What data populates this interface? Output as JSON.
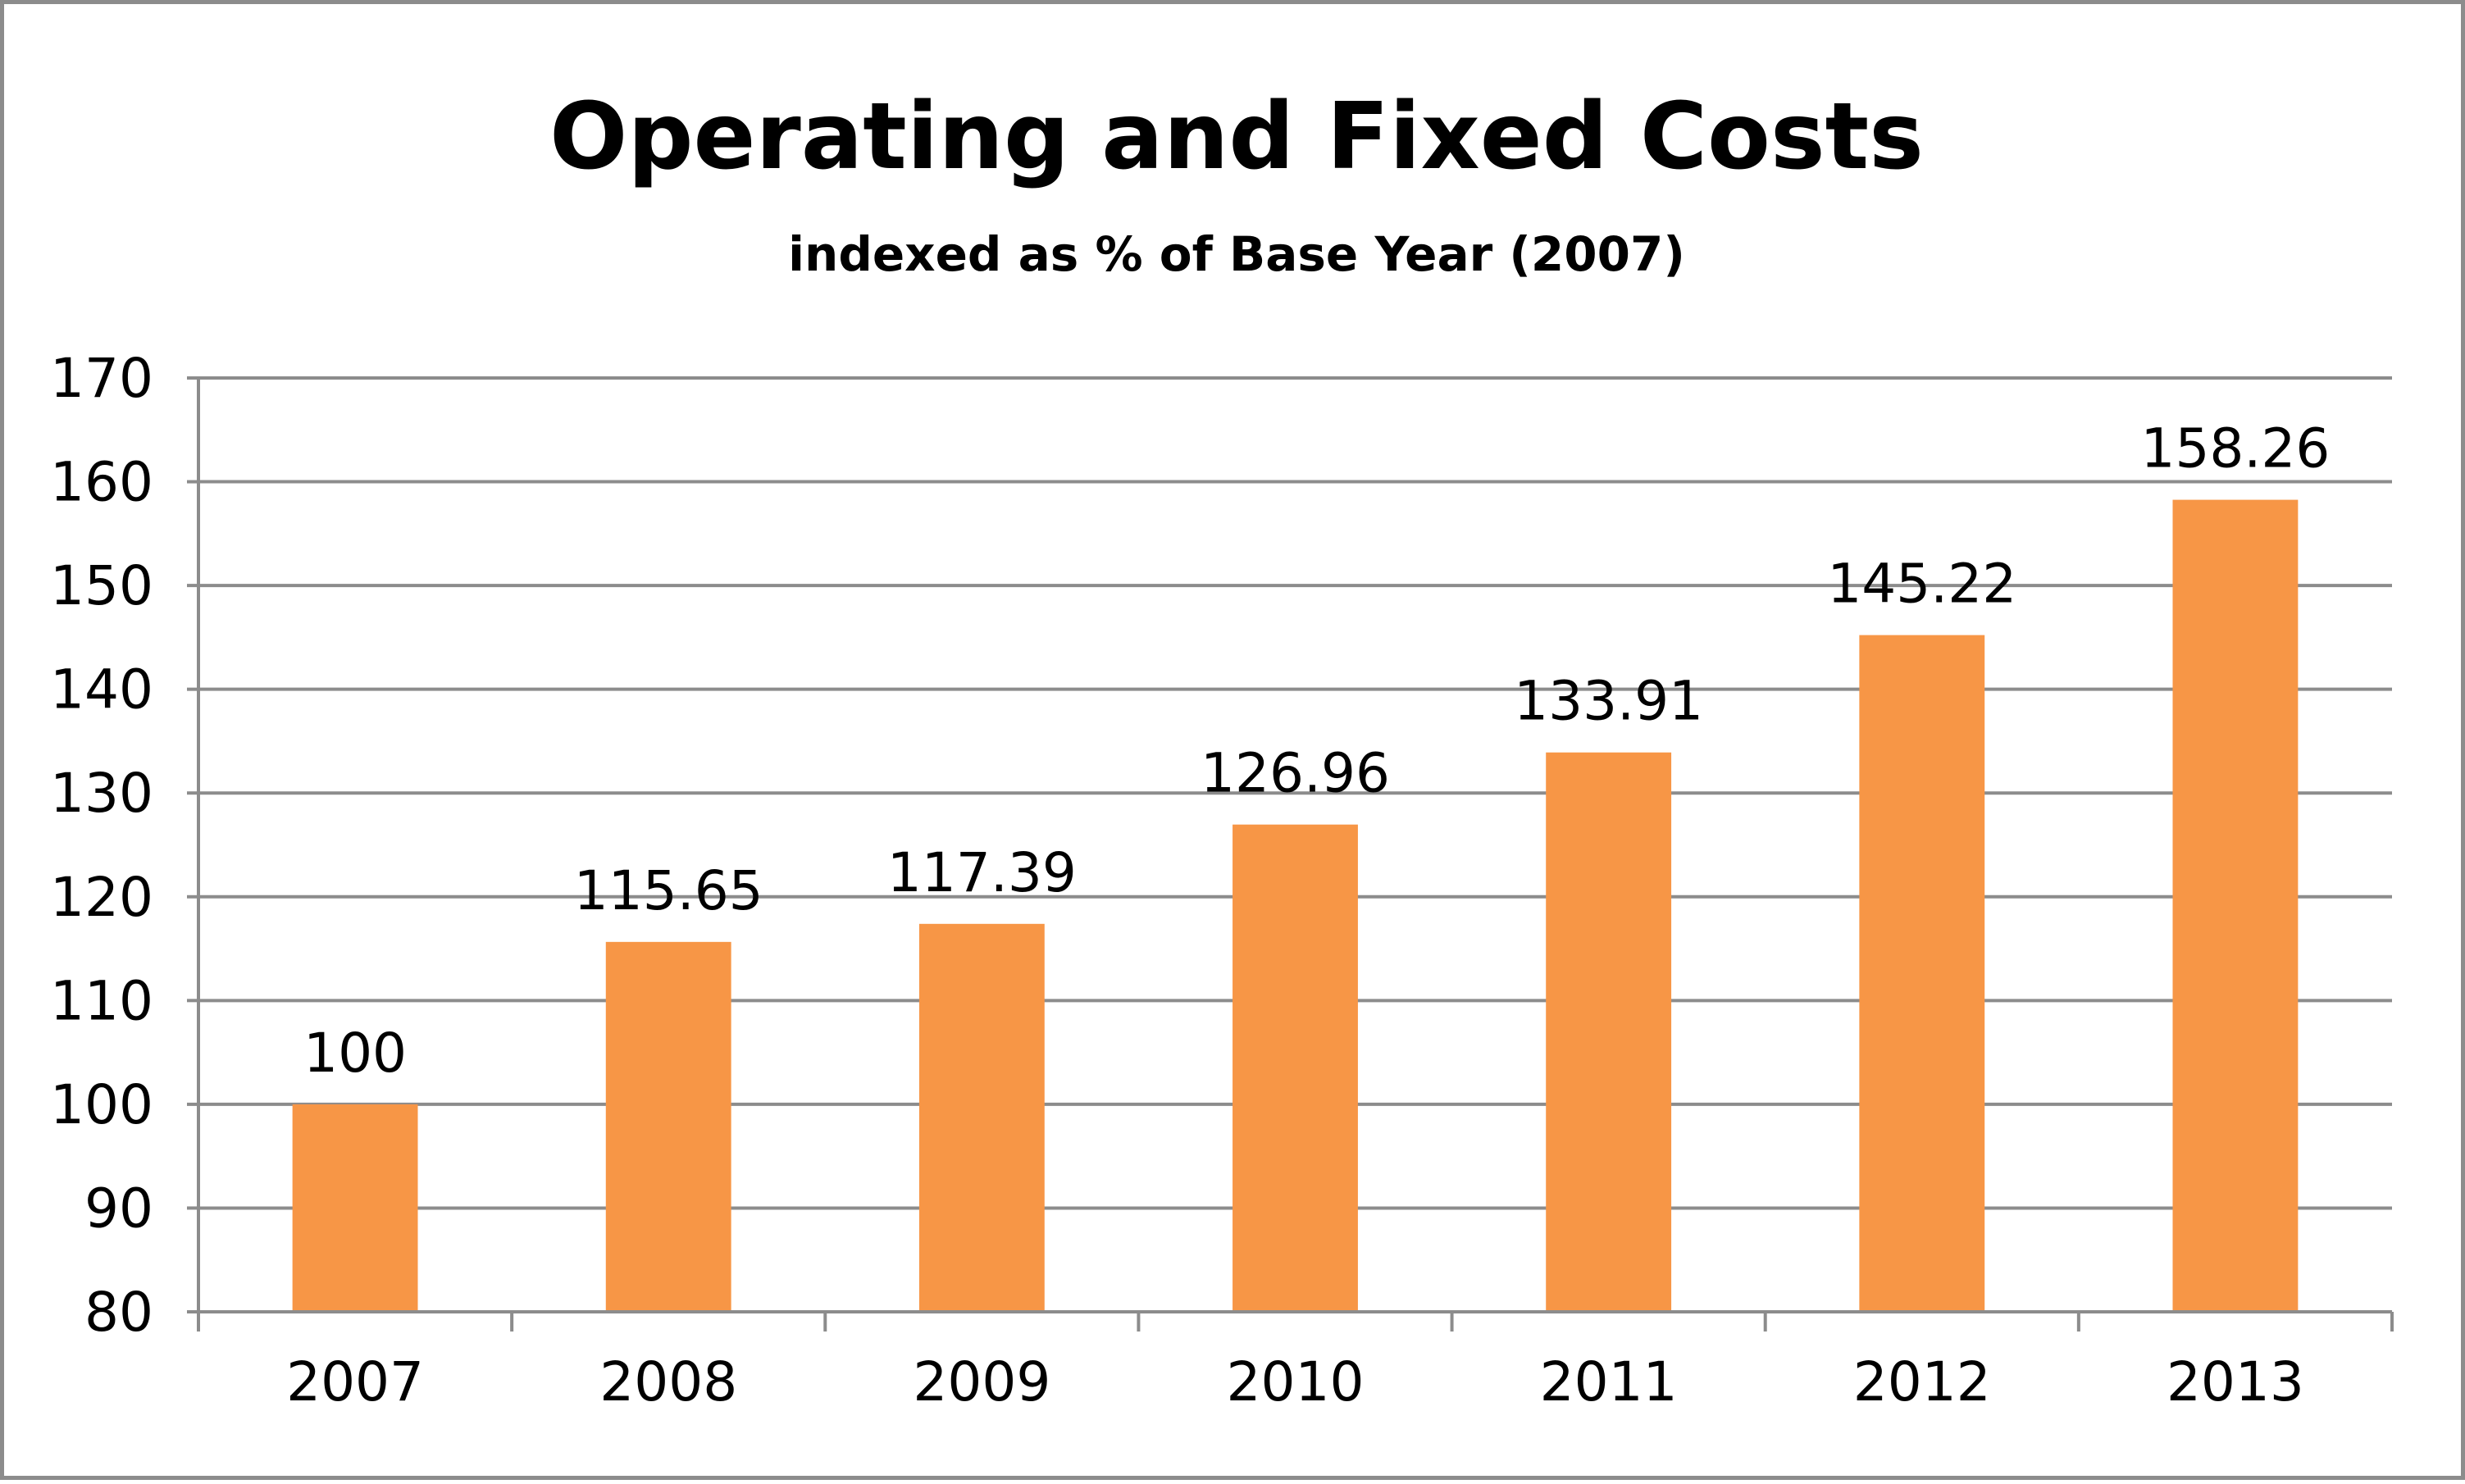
{
  "chart_data": {
    "type": "bar",
    "title": "Operating and Fixed Costs",
    "subtitle": "indexed as % of Base Year (2007)",
    "xlabel": "",
    "ylabel": "",
    "categories": [
      "2007",
      "2008",
      "2009",
      "2010",
      "2011",
      "2012",
      "2013"
    ],
    "values": [
      100,
      115.65,
      117.39,
      126.96,
      133.91,
      145.22,
      158.26
    ],
    "data_labels": [
      "100",
      "115.65",
      "117.39",
      "126.96",
      "133.91",
      "145.22",
      "158.26"
    ],
    "ylim": [
      80,
      170
    ],
    "yticks": [
      80,
      90,
      100,
      110,
      120,
      130,
      140,
      150,
      160,
      170
    ],
    "grid": true,
    "legend": "none",
    "colors": {
      "bar": "#f79646",
      "grid": "#8c8c8c",
      "frame": "#8c8c8c",
      "text": "#000000"
    }
  }
}
